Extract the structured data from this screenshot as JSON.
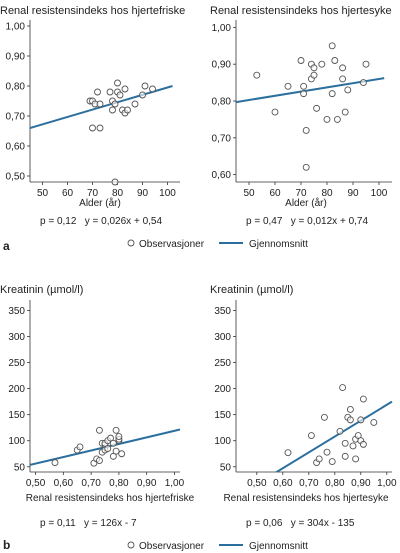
{
  "figure": {
    "panel_a_letter": "a",
    "panel_b_letter": "b",
    "legend": {
      "observations": "Observasjoner",
      "average": "Gjennomsnitt"
    },
    "colors": {
      "line": "#2b6f9e",
      "axis": "#333333",
      "marker_stroke": "#555555",
      "text": "#222222"
    }
  },
  "chart_data": [
    {
      "type": "scatter",
      "title": "Renal resistensindeks hos hjertefriske",
      "xlabel": "Alder  (år)",
      "ylabel": "",
      "xlim": [
        45,
        105
      ],
      "ylim": [
        0.48,
        1.02
      ],
      "xticks": [
        "50",
        "60",
        "70",
        "80",
        "90",
        "100"
      ],
      "xtick_values": [
        50,
        60,
        70,
        80,
        90,
        100
      ],
      "yticks": [
        "0,50",
        "0,60",
        "0,70",
        "0,80",
        "0,90",
        "1,00"
      ],
      "ytick_values": [
        0.5,
        0.6,
        0.7,
        0.8,
        0.9,
        1.0
      ],
      "stats": "p = 0,12   y = 0,026x + 0,54",
      "regression": {
        "x": [
          45,
          102
        ],
        "y": [
          0.66,
          0.8
        ]
      },
      "points": [
        [
          70,
          0.66
        ],
        [
          69,
          0.75
        ],
        [
          70,
          0.75
        ],
        [
          71,
          0.74
        ],
        [
          72,
          0.78
        ],
        [
          73,
          0.74
        ],
        [
          73,
          0.66
        ],
        [
          77,
          0.78
        ],
        [
          78,
          0.75
        ],
        [
          78,
          0.72
        ],
        [
          79,
          0.74
        ],
        [
          79,
          0.48
        ],
        [
          80,
          0.81
        ],
        [
          80,
          0.78
        ],
        [
          81,
          0.77
        ],
        [
          82,
          0.72
        ],
        [
          83,
          0.71
        ],
        [
          83,
          0.79
        ],
        [
          84,
          0.72
        ],
        [
          87,
          0.74
        ],
        [
          90,
          0.77
        ],
        [
          91,
          0.8
        ],
        [
          94,
          0.79
        ]
      ]
    },
    {
      "type": "scatter",
      "title": "Renal resistensindeks hos hjertesyke",
      "xlabel": "Alder  (år)",
      "ylabel": "",
      "xlim": [
        45,
        105
      ],
      "ylim": [
        0.58,
        1.02
      ],
      "xticks": [
        "50",
        "60",
        "70",
        "80",
        "90",
        "100"
      ],
      "xtick_values": [
        50,
        60,
        70,
        80,
        90,
        100
      ],
      "yticks": [
        "0,60",
        "0,70",
        "0,80",
        "0,90",
        "1,00"
      ],
      "ytick_values": [
        0.6,
        0.7,
        0.8,
        0.9,
        1.0
      ],
      "stats": "p = 0,47   y = 0,012x + 0,74",
      "regression": {
        "x": [
          45,
          102
        ],
        "y": [
          0.797,
          0.862
        ]
      },
      "points": [
        [
          53,
          0.87
        ],
        [
          60,
          0.77
        ],
        [
          65,
          0.84
        ],
        [
          70,
          0.91
        ],
        [
          71,
          0.84
        ],
        [
          71,
          0.82
        ],
        [
          72,
          0.72
        ],
        [
          72,
          0.62
        ],
        [
          74,
          0.86
        ],
        [
          74,
          0.9
        ],
        [
          75,
          0.87
        ],
        [
          75,
          0.89
        ],
        [
          76,
          0.78
        ],
        [
          78,
          0.9
        ],
        [
          80,
          0.75
        ],
        [
          82,
          0.95
        ],
        [
          82,
          0.82
        ],
        [
          83,
          0.91
        ],
        [
          84,
          0.75
        ],
        [
          86,
          0.89
        ],
        [
          86,
          0.86
        ],
        [
          87,
          0.77
        ],
        [
          88,
          0.83
        ],
        [
          94,
          0.85
        ],
        [
          95,
          0.9
        ]
      ]
    },
    {
      "type": "scatter",
      "title": "Kreatinin (µmol/l)",
      "xlabel": "Renal resistensindeks hos hjertefriske",
      "ylabel": "",
      "xlim": [
        0.48,
        1.02
      ],
      "ylim": [
        40,
        370
      ],
      "xticks": [
        "0,50",
        "0,60",
        "0,70",
        "0,80",
        "0,90",
        "1,00"
      ],
      "xtick_values": [
        0.5,
        0.6,
        0.7,
        0.8,
        0.9,
        1.0
      ],
      "yticks": [
        "50",
        "100",
        "150",
        "200",
        "250",
        "300",
        "350"
      ],
      "ytick_values": [
        50,
        100,
        150,
        200,
        250,
        300,
        350
      ],
      "stats": "p = 0,11   y = 126x - 7",
      "regression": {
        "x": [
          0.48,
          1.02
        ],
        "y": [
          53.5,
          121.5
        ]
      },
      "points": [
        [
          0.57,
          58
        ],
        [
          0.65,
          82
        ],
        [
          0.66,
          88
        ],
        [
          0.71,
          57
        ],
        [
          0.72,
          65
        ],
        [
          0.73,
          62
        ],
        [
          0.73,
          120
        ],
        [
          0.74,
          78
        ],
        [
          0.74,
          95
        ],
        [
          0.75,
          92
        ],
        [
          0.75,
          95
        ],
        [
          0.75,
          82
        ],
        [
          0.76,
          85
        ],
        [
          0.76,
          100
        ],
        [
          0.77,
          105
        ],
        [
          0.78,
          70
        ],
        [
          0.78,
          95
        ],
        [
          0.79,
          80
        ],
        [
          0.79,
          120
        ],
        [
          0.8,
          100
        ],
        [
          0.8,
          103
        ],
        [
          0.8,
          108
        ],
        [
          0.81,
          75
        ]
      ]
    },
    {
      "type": "scatter",
      "title": "Kreatinin (µmol/l)",
      "xlabel": "Renal resistensindeks hos hjertesyke",
      "ylabel": "",
      "xlim": [
        0.42,
        1.02
      ],
      "ylim": [
        40,
        370
      ],
      "xticks": [
        "0,50",
        "0,60",
        "0,70",
        "0,80",
        "0,90",
        "1,00"
      ],
      "xtick_values": [
        0.5,
        0.6,
        0.7,
        0.8,
        0.9,
        1.0
      ],
      "yticks": [
        "50",
        "100",
        "150",
        "200",
        "250",
        "300",
        "350"
      ],
      "ytick_values": [
        50,
        100,
        150,
        200,
        250,
        300,
        350
      ],
      "stats": "p = 0,06   y = 304x - 135",
      "regression": {
        "x": [
          0.55,
          1.02
        ],
        "y": [
          32,
          175
        ]
      },
      "points": [
        [
          0.62,
          77
        ],
        [
          0.71,
          110
        ],
        [
          0.73,
          58
        ],
        [
          0.74,
          65
        ],
        [
          0.76,
          145
        ],
        [
          0.77,
          78
        ],
        [
          0.79,
          60
        ],
        [
          0.82,
          118
        ],
        [
          0.83,
          202
        ],
        [
          0.84,
          95
        ],
        [
          0.84,
          70
        ],
        [
          0.85,
          145
        ],
        [
          0.86,
          160
        ],
        [
          0.86,
          140
        ],
        [
          0.87,
          90
        ],
        [
          0.88,
          65
        ],
        [
          0.88,
          103
        ],
        [
          0.89,
          110
        ],
        [
          0.9,
          140
        ],
        [
          0.9,
          100
        ],
        [
          0.91,
          93
        ],
        [
          0.91,
          180
        ],
        [
          0.95,
          135
        ]
      ]
    }
  ]
}
